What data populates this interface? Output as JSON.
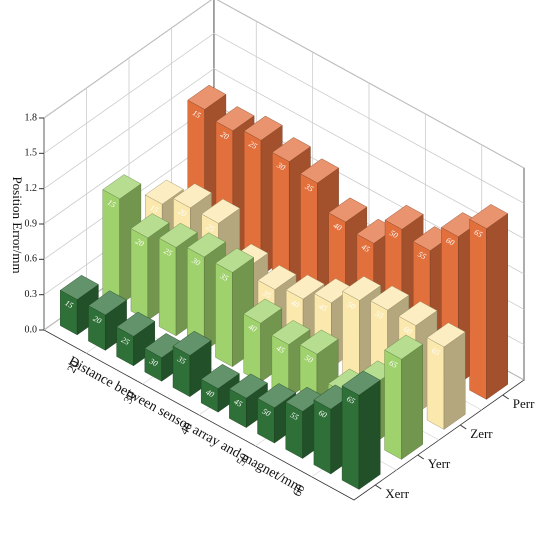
{
  "chart_data": {
    "type": "bar3d",
    "y_label": "Position Error/mm",
    "x_label": "Distance between sensor array and magnet/mm",
    "categories": [
      15,
      20,
      25,
      30,
      35,
      40,
      45,
      50,
      55,
      60,
      65
    ],
    "xticks": [
      20,
      30,
      40,
      50,
      60
    ],
    "ylim": [
      0,
      1.8
    ],
    "yticks": [
      {
        "value": 0,
        "label": "0.0"
      },
      0.3,
      0.6,
      0.9,
      1.2,
      1.5,
      1.8
    ],
    "grid": true,
    "series": [
      {
        "name": "Xerr",
        "color": "#2f6f38",
        "values": [
          0.3,
          0.3,
          0.25,
          0.2,
          0.35,
          0.2,
          0.25,
          0.3,
          0.4,
          0.55,
          0.8
        ]
      },
      {
        "name": "Yerr",
        "color": "#9fd16c",
        "values": [
          0.9,
          0.7,
          0.75,
          0.8,
          0.8,
          0.5,
          0.45,
          0.5,
          0.3,
          0.5,
          0.85
        ]
      },
      {
        "name": "Zerr",
        "color": "#fbe8ad",
        "values": [
          0.6,
          0.7,
          0.7,
          0.45,
          0.4,
          0.45,
          0.55,
          0.7,
          0.75,
          0.75,
          0.7
        ]
      },
      {
        "name": "Perr",
        "color": "#e2703d",
        "values": [
          1.15,
          1.1,
          1.15,
          1.1,
          1.05,
          0.85,
          0.8,
          1.05,
          1.0,
          1.25,
          1.45
        ]
      }
    ]
  }
}
